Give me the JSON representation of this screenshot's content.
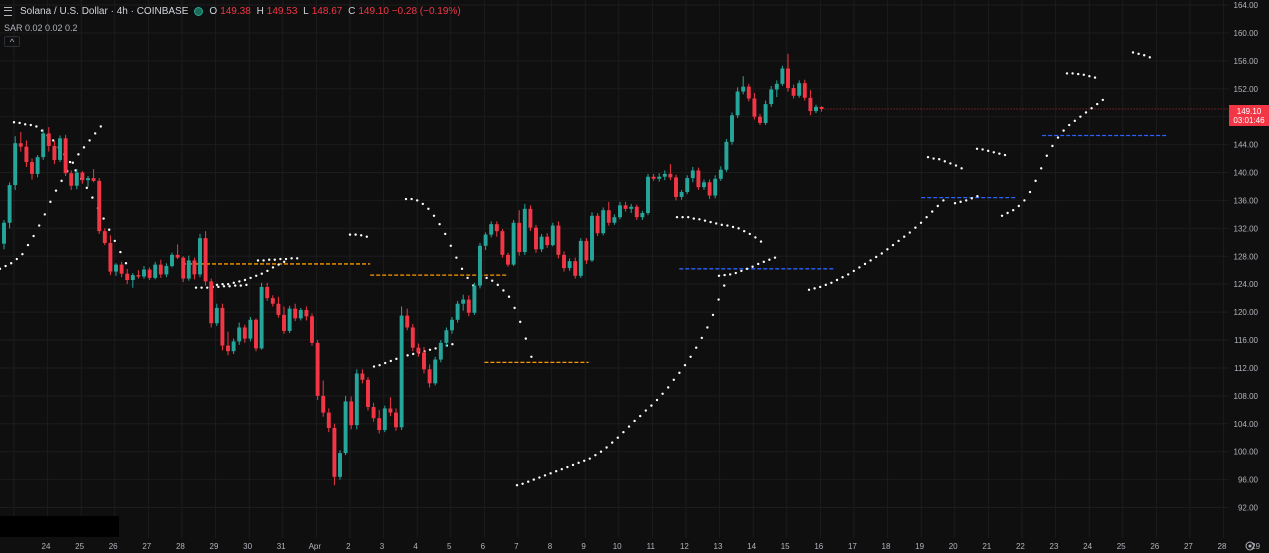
{
  "header": {
    "symbol": "Solana / U.S. Dollar · 4h · COINBASE",
    "o_key": "O",
    "o_val": "149.38",
    "h_key": "H",
    "h_val": "149.53",
    "l_key": "L",
    "l_val": "148.67",
    "c_key": "C",
    "c_val": "149.10 −0.28 (−0.19%)",
    "indicator": "SAR 0.02 0.02 0.2",
    "collapse": "^"
  },
  "price_tag": {
    "price": "149.10",
    "countdown": "03:01:46"
  },
  "colors": {
    "bg": "#0f0f0f",
    "up": "#26a69a",
    "down": "#f23645",
    "sar": "#ffffff",
    "orange_line": "#ff9800",
    "blue_line": "#2962ff",
    "grid": "#1c1c1c",
    "axis_text": "#b2b5be"
  },
  "chart_data": {
    "type": "candlestick",
    "symbol": "SOL/USD",
    "interval": "4h",
    "ylim": [
      90.5,
      164
    ],
    "y_ticks": [
      92,
      96,
      100,
      104,
      108,
      112,
      116,
      120,
      124,
      128,
      132,
      136,
      140,
      144,
      148,
      152,
      156,
      160,
      164
    ],
    "x_ticks": [
      "24",
      "25",
      "26",
      "27",
      "28",
      "29",
      "30",
      "31",
      "Apr",
      "2",
      "3",
      "4",
      "5",
      "6",
      "7",
      "8",
      "9",
      "10",
      "11",
      "12",
      "13",
      "14",
      "15",
      "16",
      "17",
      "18",
      "19",
      "20",
      "21",
      "22",
      "23",
      "24",
      "25",
      "26",
      "27",
      "28",
      "29"
    ],
    "x_tick_days": [
      0,
      1,
      2,
      3,
      4,
      5,
      6,
      7,
      8,
      9,
      10,
      11,
      12,
      13,
      14,
      15,
      16,
      17,
      18,
      19,
      20,
      21,
      22,
      23,
      24,
      25,
      26,
      27,
      28,
      29,
      30,
      31,
      32,
      33,
      34,
      35,
      36
    ],
    "candles": [
      [
        129.8,
        133.2,
        129.0,
        132.8
      ],
      [
        132.8,
        138.6,
        132.0,
        138.2
      ],
      [
        138.2,
        145.2,
        137.5,
        144.2
      ],
      [
        144.2,
        145.8,
        143.0,
        143.7
      ],
      [
        143.7,
        144.6,
        140.8,
        141.5
      ],
      [
        141.5,
        142.0,
        139.0,
        139.8
      ],
      [
        139.8,
        142.5,
        139.3,
        142.2
      ],
      [
        142.2,
        146.2,
        141.8,
        145.6
      ],
      [
        145.6,
        146.5,
        143.0,
        143.8
      ],
      [
        143.8,
        144.5,
        141.2,
        141.8
      ],
      [
        141.8,
        145.3,
        141.5,
        144.9
      ],
      [
        144.9,
        145.4,
        139.5,
        139.9
      ],
      [
        139.9,
        140.3,
        137.5,
        138.1
      ],
      [
        138.1,
        140.5,
        137.6,
        140.0
      ],
      [
        140.0,
        140.2,
        138.4,
        138.9
      ],
      [
        138.9,
        139.5,
        138.0,
        139.2
      ],
      [
        139.2,
        140.5,
        138.6,
        138.8
      ],
      [
        138.8,
        139.2,
        131.2,
        131.6
      ],
      [
        131.6,
        132.0,
        129.6,
        129.9
      ],
      [
        129.9,
        131.0,
        125.3,
        125.8
      ],
      [
        125.8,
        127.0,
        125.2,
        126.8
      ],
      [
        126.8,
        127.2,
        125.0,
        125.5
      ],
      [
        125.5,
        126.2,
        124.0,
        124.6
      ],
      [
        124.6,
        125.6,
        123.5,
        125.3
      ],
      [
        125.3,
        126.0,
        124.8,
        125.1
      ],
      [
        125.1,
        126.6,
        124.8,
        126.1
      ],
      [
        126.1,
        126.4,
        124.6,
        124.9
      ],
      [
        124.9,
        127.2,
        124.7,
        126.8
      ],
      [
        126.8,
        127.5,
        124.9,
        125.4
      ],
      [
        125.4,
        127.0,
        125.0,
        126.6
      ],
      [
        126.6,
        128.5,
        126.4,
        128.2
      ],
      [
        128.2,
        129.7,
        127.6,
        127.8
      ],
      [
        127.8,
        128.0,
        124.3,
        124.8
      ],
      [
        124.8,
        128.1,
        124.5,
        127.4
      ],
      [
        127.4,
        127.8,
        124.7,
        125.4
      ],
      [
        125.4,
        131.2,
        125.0,
        130.6
      ],
      [
        130.6,
        131.6,
        123.8,
        124.4
      ],
      [
        124.4,
        124.8,
        117.8,
        118.4
      ],
      [
        118.4,
        121.2,
        118.0,
        120.6
      ],
      [
        120.6,
        121.2,
        114.5,
        115.2
      ],
      [
        115.2,
        117.2,
        113.8,
        114.4
      ],
      [
        114.4,
        116.2,
        114.0,
        115.8
      ],
      [
        115.8,
        118.5,
        115.3,
        117.8
      ],
      [
        117.8,
        118.2,
        115.6,
        116.2
      ],
      [
        116.2,
        119.3,
        115.8,
        118.9
      ],
      [
        118.9,
        119.1,
        114.4,
        114.8
      ],
      [
        114.8,
        124.2,
        114.6,
        123.6
      ],
      [
        123.6,
        124.2,
        121.6,
        122.0
      ],
      [
        122.0,
        122.4,
        120.8,
        121.2
      ],
      [
        121.2,
        122.2,
        119.2,
        119.6
      ],
      [
        119.6,
        120.8,
        116.9,
        117.3
      ],
      [
        117.3,
        120.9,
        117.0,
        120.5
      ],
      [
        120.5,
        121.2,
        118.7,
        119.1
      ],
      [
        119.1,
        120.6,
        118.8,
        120.3
      ],
      [
        120.3,
        120.8,
        118.8,
        119.4
      ],
      [
        119.4,
        119.8,
        115.2,
        115.6
      ],
      [
        115.6,
        116.0,
        107.4,
        108.0
      ],
      [
        108.0,
        110.2,
        105.0,
        105.6
      ],
      [
        105.6,
        106.2,
        102.8,
        103.4
      ],
      [
        103.4,
        104.0,
        95.2,
        96.4
      ],
      [
        96.4,
        100.2,
        96.0,
        99.8
      ],
      [
        99.8,
        108.0,
        99.5,
        107.2
      ],
      [
        107.2,
        107.9,
        103.2,
        103.8
      ],
      [
        103.8,
        111.8,
        103.2,
        111.2
      ],
      [
        111.2,
        111.8,
        109.8,
        110.3
      ],
      [
        110.3,
        110.7,
        105.9,
        106.4
      ],
      [
        106.4,
        107.0,
        104.3,
        104.8
      ],
      [
        104.8,
        106.0,
        102.6,
        103.1
      ],
      [
        103.1,
        106.6,
        102.8,
        106.2
      ],
      [
        106.2,
        107.8,
        105.1,
        105.6
      ],
      [
        105.6,
        106.2,
        103.0,
        103.5
      ],
      [
        103.5,
        120.8,
        103.1,
        119.5
      ],
      [
        119.5,
        120.5,
        117.4,
        117.8
      ],
      [
        117.8,
        118.3,
        114.4,
        114.9
      ],
      [
        114.9,
        115.5,
        113.6,
        114.2
      ],
      [
        114.2,
        115.0,
        111.2,
        111.8
      ],
      [
        111.8,
        112.5,
        109.2,
        109.8
      ],
      [
        109.8,
        113.6,
        109.5,
        113.2
      ],
      [
        113.2,
        116.0,
        112.8,
        115.6
      ],
      [
        115.6,
        117.8,
        115.0,
        117.4
      ],
      [
        117.4,
        119.3,
        116.9,
        118.9
      ],
      [
        118.9,
        121.6,
        118.5,
        121.2
      ],
      [
        121.2,
        122.5,
        120.2,
        121.8
      ],
      [
        121.8,
        122.4,
        119.4,
        119.9
      ],
      [
        119.9,
        124.2,
        119.6,
        123.8
      ],
      [
        123.8,
        129.9,
        123.4,
        129.5
      ],
      [
        129.5,
        131.4,
        128.9,
        131.1
      ],
      [
        131.1,
        133.0,
        130.7,
        132.6
      ],
      [
        132.6,
        133.0,
        130.8,
        131.6
      ],
      [
        131.6,
        131.9,
        127.8,
        128.2
      ],
      [
        128.2,
        128.5,
        126.5,
        126.8
      ],
      [
        126.8,
        133.2,
        126.6,
        132.8
      ],
      [
        132.8,
        134.6,
        128.1,
        128.6
      ],
      [
        128.6,
        135.5,
        128.2,
        134.8
      ],
      [
        134.8,
        135.3,
        131.6,
        132.1
      ],
      [
        132.1,
        132.5,
        128.5,
        129.0
      ],
      [
        129.0,
        131.2,
        128.6,
        130.8
      ],
      [
        130.8,
        131.3,
        129.2,
        129.6
      ],
      [
        129.6,
        132.8,
        129.4,
        132.4
      ],
      [
        132.4,
        133.0,
        127.7,
        128.2
      ],
      [
        128.2,
        128.7,
        125.8,
        126.3
      ],
      [
        126.3,
        127.7,
        125.9,
        127.3
      ],
      [
        127.3,
        127.8,
        124.8,
        125.2
      ],
      [
        125.2,
        130.6,
        124.9,
        130.2
      ],
      [
        130.2,
        130.6,
        126.9,
        127.4
      ],
      [
        127.4,
        134.3,
        127.2,
        133.8
      ],
      [
        133.8,
        134.2,
        130.9,
        131.3
      ],
      [
        131.3,
        135.0,
        131.0,
        134.6
      ],
      [
        134.6,
        135.8,
        132.4,
        132.8
      ],
      [
        132.8,
        134.0,
        132.5,
        133.6
      ],
      [
        133.6,
        135.8,
        133.3,
        135.3
      ],
      [
        135.3,
        135.8,
        134.4,
        134.8
      ],
      [
        134.8,
        135.5,
        134.2,
        135.1
      ],
      [
        135.1,
        135.4,
        133.2,
        133.6
      ],
      [
        133.6,
        134.5,
        133.2,
        134.2
      ],
      [
        134.2,
        139.8,
        133.9,
        139.4
      ],
      [
        139.4,
        139.8,
        138.8,
        139.1
      ],
      [
        139.1,
        139.9,
        138.7,
        139.4
      ],
      [
        139.4,
        140.3,
        138.9,
        139.8
      ],
      [
        139.8,
        141.2,
        138.9,
        139.3
      ],
      [
        139.3,
        139.7,
        136.0,
        136.5
      ],
      [
        136.5,
        137.5,
        136.1,
        137.2
      ],
      [
        137.2,
        139.6,
        136.9,
        139.2
      ],
      [
        139.2,
        140.8,
        138.6,
        140.3
      ],
      [
        140.3,
        140.7,
        137.5,
        137.9
      ],
      [
        137.9,
        139.0,
        137.5,
        138.6
      ],
      [
        138.6,
        139.0,
        136.2,
        136.7
      ],
      [
        136.7,
        139.6,
        136.3,
        139.1
      ],
      [
        139.1,
        140.9,
        138.8,
        140.4
      ],
      [
        140.4,
        144.8,
        140.1,
        144.4
      ],
      [
        144.4,
        148.6,
        144.0,
        148.2
      ],
      [
        148.2,
        152.2,
        147.8,
        151.6
      ],
      [
        151.6,
        153.8,
        151.2,
        152.3
      ],
      [
        152.3,
        152.7,
        150.2,
        150.6
      ],
      [
        150.6,
        151.4,
        147.6,
        148.0
      ],
      [
        148.0,
        148.4,
        146.8,
        147.1
      ],
      [
        147.1,
        150.3,
        146.8,
        149.8
      ],
      [
        149.8,
        152.4,
        149.4,
        151.9
      ],
      [
        151.9,
        153.2,
        150.8,
        152.7
      ],
      [
        152.7,
        155.3,
        152.4,
        154.9
      ],
      [
        154.9,
        157.0,
        151.6,
        152.1
      ],
      [
        152.1,
        152.6,
        150.6,
        151.0
      ],
      [
        151.0,
        153.2,
        150.7,
        152.8
      ],
      [
        152.8,
        153.3,
        150.3,
        150.7
      ],
      [
        150.7,
        151.8,
        148.2,
        148.8
      ],
      [
        148.8,
        149.7,
        148.5,
        149.4
      ],
      [
        149.4,
        149.5,
        148.7,
        149.1
      ]
    ],
    "sar": [
      [
        126.2,
        126.6,
        127.0,
        127.6,
        128.3,
        129.6,
        130.9,
        132.4,
        134.0,
        135.8,
        137.4,
        138.8,
        140.2,
        141.4,
        142.6,
        143.6,
        144.6,
        145.6,
        146.6
      ],
      [
        147.2,
        147.1,
        146.9,
        146.8,
        146.6,
        146.0,
        145.3,
        144.6,
        143.6,
        142.6,
        141.5,
        140.3,
        139.1,
        137.8,
        136.4,
        134.9,
        133.4,
        131.8,
        130.2,
        128.6,
        127.0
      ],
      [
        123.5,
        123.5,
        123.5,
        123.6,
        123.6,
        123.7,
        123.7,
        123.8,
        123.8,
        123.9
      ],
      [
        127.4,
        127.4,
        127.5,
        127.5,
        127.6,
        127.6,
        127.7,
        127.7
      ],
      [
        123.9,
        124.0,
        124.0,
        124.2,
        124.4,
        124.6,
        124.9,
        125.2,
        125.5,
        125.9,
        126.4,
        126.8,
        127.2
      ],
      [
        131.1,
        131.1,
        131.0,
        130.8
      ],
      [
        136.2,
        136.2,
        136.0,
        135.5,
        134.8,
        133.8,
        132.6,
        131.2,
        129.5,
        127.8,
        126.2,
        124.9,
        123.8
      ],
      [
        112.2,
        112.4,
        112.7,
        113.0,
        113.3,
        113.6,
        113.8,
        114.0,
        114.2,
        114.4,
        114.6,
        114.8,
        115.0,
        115.2,
        115.4
      ],
      [
        125.2,
        124.9,
        124.5,
        123.9,
        123.1,
        122.2,
        120.6,
        118.6,
        116.2,
        113.6
      ],
      [
        95.2,
        95.4,
        95.7,
        96.0,
        96.3,
        96.6,
        96.9,
        97.2,
        97.5,
        97.8,
        98.1,
        98.4,
        98.7,
        99.0,
        99.5,
        100.0,
        100.6,
        101.3,
        102.0,
        102.8,
        103.6,
        104.4,
        105.1,
        105.9,
        106.6,
        107.4,
        108.3,
        109.2,
        110.3,
        111.3,
        112.4,
        113.6,
        114.9,
        116.3,
        117.8,
        119.6,
        121.8,
        123.8
      ],
      [
        133.6,
        133.6,
        133.6,
        133.4,
        133.3,
        133.1,
        132.9,
        132.7,
        132.5,
        132.4,
        132.2,
        132.0,
        131.6,
        131.2,
        130.7,
        130.1
      ],
      [
        125.2,
        125.3,
        125.4,
        125.6,
        125.9,
        126.2,
        126.5,
        126.9,
        127.2,
        127.5,
        127.8
      ],
      [
        123.2,
        123.4,
        123.6,
        123.9,
        124.2,
        124.6,
        125.0,
        125.4,
        125.9,
        126.4,
        126.9,
        127.4,
        127.9,
        128.4,
        129.0,
        129.6,
        130.2,
        130.8,
        131.4,
        132.1,
        132.8,
        133.6,
        134.4,
        135.2,
        136.0
      ],
      [
        142.2,
        142.0,
        141.9,
        141.6,
        141.3,
        141.0,
        140.6
      ],
      [
        135.6,
        135.8,
        136.0,
        136.3,
        136.6
      ],
      [
        143.4,
        143.3,
        143.1,
        142.9,
        142.7,
        142.5
      ],
      [
        133.8,
        134.2,
        134.6,
        135.2,
        136.0,
        137.2,
        138.8,
        140.6,
        142.4,
        143.8,
        145.0,
        146.0,
        146.8,
        147.4,
        148.0,
        148.6,
        149.2,
        149.8,
        150.4
      ],
      [
        154.2,
        154.2,
        154.1,
        154.0,
        153.8,
        153.6
      ],
      [
        157.2,
        157.0,
        156.8,
        156.5
      ]
    ],
    "sar_start_index": [
      0,
      19,
      40,
      50,
      58,
      71,
      72,
      83,
      93,
      103,
      141,
      157,
      171,
      193,
      207,
      213,
      219,
      238,
      262
    ],
    "sar_start_x": [
      0,
      14,
      196,
      258,
      217,
      350,
      406,
      374,
      481,
      517,
      677,
      719,
      809,
      928,
      955,
      977,
      1002,
      1067,
      1133
    ],
    "levels": [
      {
        "color": "orange",
        "price": 126.9,
        "from_day": 5.0,
        "to_day": 10.6
      },
      {
        "color": "orange",
        "price": 125.3,
        "from_day": 10.6,
        "to_day": 14.7
      },
      {
        "color": "orange",
        "price": 112.8,
        "from_day": 14.0,
        "to_day": 17.1
      },
      {
        "color": "blue",
        "price": 126.2,
        "from_day": 19.8,
        "to_day": 24.4
      },
      {
        "color": "blue",
        "price": 136.4,
        "from_day": 27.0,
        "to_day": 29.8
      },
      {
        "color": "blue",
        "price": 145.3,
        "from_day": 30.6,
        "to_day": 34.3
      }
    ]
  }
}
